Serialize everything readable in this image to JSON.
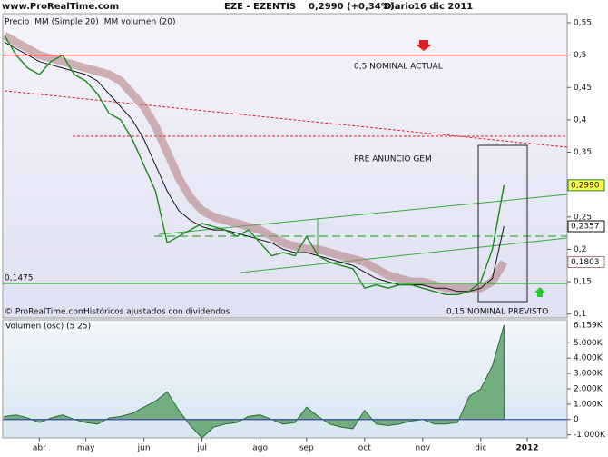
{
  "header": {
    "site": "www.ProRealTime.com",
    "symbol": "EZE - EZENTIS",
    "quote": "0,2990 (+0,34%)",
    "period": "Diario",
    "date": "16 dic 2011"
  },
  "footer": {
    "copyright": "© ProRealTime.com",
    "note": "Históricos ajustados con dividendos"
  },
  "annotations": {
    "pre_anuncio": "PRE ANUNCIO GEM",
    "nominal_previsto": "0,15 NOMINAL PREVISTO",
    "nominal_actual": "0,5 NOMINAL ACTUAL"
  },
  "chart_data": [
    {
      "type": "line",
      "categories": [
        null,
        null,
        null,
        "abr",
        null,
        null,
        null,
        "may",
        null,
        null,
        null,
        null,
        "jun",
        null,
        null,
        null,
        null,
        "jul",
        null,
        null,
        null,
        null,
        "ago",
        null,
        null,
        null,
        "sep",
        null,
        null,
        null,
        null,
        "oct",
        null,
        null,
        null,
        null,
        "nov",
        null,
        null,
        null,
        null,
        "dic",
        null,
        null,
        null,
        "2012"
      ],
      "series": [
        {
          "name": "MM (Simple 20)",
          "color": "#b07a7a",
          "last_label": "0,1803",
          "values": [
            0.53,
            0.52,
            0.51,
            0.5,
            0.495,
            0.49,
            0.485,
            0.48,
            0.475,
            0.47,
            0.46,
            0.44,
            0.42,
            0.39,
            0.35,
            0.31,
            0.28,
            0.26,
            0.25,
            0.245,
            0.24,
            0.235,
            0.23,
            0.22,
            0.21,
            0.205,
            0.2,
            0.2,
            0.195,
            0.19,
            0.185,
            0.18,
            0.17,
            0.16,
            0.155,
            0.15,
            0.15,
            0.145,
            0.14,
            0.14,
            0.14,
            0.14,
            0.15,
            0.1803,
            null,
            null
          ]
        },
        {
          "name": "MM volumen (20)",
          "color": "#111111",
          "last_label": "0,2357",
          "values": [
            0.52,
            0.51,
            0.5,
            0.49,
            0.485,
            0.48,
            0.475,
            0.47,
            0.46,
            0.44,
            0.42,
            0.4,
            0.37,
            0.33,
            0.29,
            0.26,
            0.245,
            0.235,
            0.23,
            0.23,
            0.225,
            0.22,
            0.215,
            0.21,
            0.2,
            0.195,
            0.195,
            0.19,
            0.185,
            0.18,
            0.175,
            0.165,
            0.155,
            0.15,
            0.145,
            0.145,
            0.145,
            0.14,
            0.14,
            0.135,
            0.135,
            0.14,
            0.155,
            0.2357,
            null,
            null
          ]
        },
        {
          "name": "Precio",
          "color": "#1a8a1a",
          "last_label": "0,2990",
          "values": [
            0.53,
            0.5,
            0.48,
            0.47,
            0.49,
            0.5,
            0.47,
            0.46,
            0.44,
            0.41,
            0.4,
            0.37,
            0.33,
            0.29,
            0.21,
            0.22,
            0.23,
            0.24,
            0.235,
            0.23,
            0.22,
            0.23,
            0.21,
            0.19,
            0.195,
            0.19,
            0.22,
            0.19,
            0.18,
            0.175,
            0.17,
            0.14,
            0.145,
            0.14,
            0.145,
            0.145,
            0.14,
            0.135,
            0.13,
            0.13,
            0.135,
            0.15,
            0.2,
            0.299,
            null,
            null
          ]
        }
      ],
      "levels": [
        {
          "value": 0.5,
          "color": "#e02020"
        },
        {
          "value": 0.1475,
          "label": "0,1475",
          "color": "#1a9a1a"
        }
      ],
      "ylim": [
        0.094,
        0.564
      ],
      "yticks": [
        {
          "value": 0.1,
          "label": "0,1"
        },
        {
          "value": 0.15,
          "label": "0,15"
        },
        {
          "value": 0.2,
          "label": "0,2"
        },
        {
          "value": 0.25,
          "label": "0,25"
        },
        {
          "value": 0.3,
          "label": "0,3"
        },
        {
          "value": 0.35,
          "label": "0,35"
        },
        {
          "value": 0.4,
          "label": "0,4"
        },
        {
          "value": 0.45,
          "label": "0,45"
        },
        {
          "value": 0.5,
          "label": "0,5"
        },
        {
          "value": 0.55,
          "label": "0,55"
        }
      ]
    },
    {
      "type": "area",
      "title": "Volumen (osc) (5 25)",
      "color": "#4f9a5a",
      "last_label": "6.159K",
      "values": [
        200,
        300,
        100,
        -200,
        100,
        300,
        0,
        -200,
        -300,
        100,
        200,
        400,
        800,
        1200,
        1800,
        600,
        -400,
        -1200,
        -500,
        -300,
        -200,
        200,
        300,
        0,
        -300,
        -200,
        800,
        200,
        -300,
        -500,
        -600,
        600,
        -300,
        -400,
        -300,
        -100,
        0,
        -300,
        -300,
        -200,
        1500,
        2000,
        3500,
        6159,
        null,
        null
      ],
      "ylim": [
        -1200,
        6500
      ],
      "yticks": [
        {
          "value": -1000,
          "label": "-1.000K"
        },
        0,
        {
          "value": 1000,
          "label": "1.000K"
        },
        {
          "value": 2000,
          "label": "2.000K"
        },
        {
          "value": 3000,
          "label": "3.000K"
        },
        {
          "value": 4000,
          "label": "4.000K"
        },
        {
          "value": 5000,
          "label": "5.000K"
        }
      ]
    }
  ]
}
